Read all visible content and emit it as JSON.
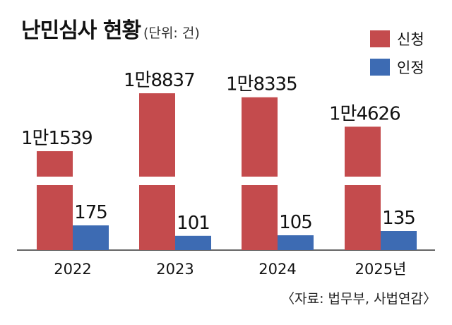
{
  "chart_data": {
    "type": "bar",
    "title": "난민심사 현황",
    "unit": "(단위: 건)",
    "categories": [
      "2022",
      "2023",
      "2024",
      "2025년"
    ],
    "series": [
      {
        "name": "신청",
        "color": "#c44b4d",
        "values": [
          11539,
          18837,
          18335,
          14626
        ],
        "labels": [
          "1만1539",
          "1만8837",
          "1만8335",
          "1만4626"
        ]
      },
      {
        "name": "인정",
        "color": "#3d6bb3",
        "values": [
          175,
          101,
          105,
          135
        ],
        "labels": [
          "175",
          "101",
          "105",
          "135"
        ]
      }
    ],
    "axis_break": true
  },
  "source": "〈자료: 법무부, 사법연감〉"
}
